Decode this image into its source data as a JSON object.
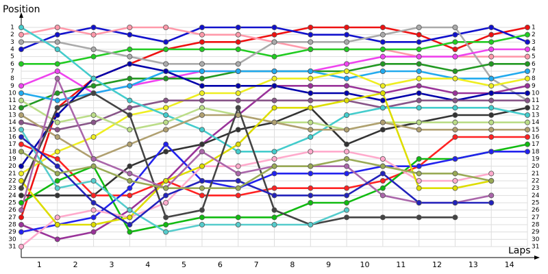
{
  "chart_data": {
    "type": "line",
    "y_label": "Position",
    "x_label": "Laps",
    "x": [
      0,
      1,
      2,
      3,
      4,
      5,
      6,
      7,
      8,
      9,
      10,
      11,
      12,
      13,
      14
    ],
    "xlim": [
      0,
      14
    ],
    "xticks": [
      {
        "value": 0.5,
        "label": "1"
      },
      {
        "value": 1.5,
        "label": "2"
      },
      {
        "value": 2.5,
        "label": "3"
      },
      {
        "value": 3.5,
        "label": "4"
      },
      {
        "value": 4.5,
        "label": "5"
      },
      {
        "value": 5.5,
        "label": "6"
      },
      {
        "value": 6.5,
        "label": "7"
      },
      {
        "value": 7.5,
        "label": "8"
      },
      {
        "value": 8.5,
        "label": "9"
      },
      {
        "value": 9.5,
        "label": "10"
      },
      {
        "value": 10.5,
        "label": "11"
      },
      {
        "value": 11.5,
        "label": "12"
      },
      {
        "value": 12.5,
        "label": "13"
      },
      {
        "value": 13.5,
        "label": "14"
      }
    ],
    "ylim": [
      1,
      31
    ],
    "y_inverted": true,
    "yticks": [
      1,
      2,
      3,
      4,
      5,
      6,
      7,
      8,
      9,
      10,
      11,
      12,
      13,
      14,
      15,
      16,
      17,
      18,
      19,
      20,
      21,
      22,
      23,
      24,
      25,
      26,
      27,
      28,
      29,
      30,
      31
    ],
    "right_ticks": true,
    "grid": true,
    "series": [
      {
        "color": "#ee1111",
        "values": [
          27,
          12,
          8,
          6,
          4,
          3,
          3,
          2,
          1,
          1,
          1,
          2,
          4,
          2,
          1
        ]
      },
      {
        "color": "#1111cc",
        "values": [
          4,
          2,
          1,
          2,
          3,
          1,
          1,
          1,
          2,
          2,
          3,
          3,
          2,
          1,
          3
        ]
      },
      {
        "color": "#ff99aa",
        "values": [
          2,
          1,
          2,
          1,
          1,
          2,
          2,
          3,
          4,
          4,
          4,
          5,
          5,
          5,
          5
        ]
      },
      {
        "color": "#22cc22",
        "values": [
          6,
          6,
          5,
          4,
          4,
          4,
          4,
          5,
          4,
          4,
          4,
          4,
          3,
          3,
          2
        ]
      },
      {
        "color": "#aaaaaa",
        "values": [
          3,
          3,
          4,
          5,
          6,
          6,
          6,
          3,
          3,
          3,
          2,
          1,
          1,
          8,
          11
        ]
      },
      {
        "color": "#ee44ee",
        "values": [
          9,
          7,
          10,
          9,
          8,
          7,
          7,
          7,
          7,
          6,
          5,
          5,
          5,
          4,
          4
        ]
      },
      {
        "color": "#229922",
        "values": [
          12,
          10,
          9,
          8,
          8,
          8,
          7,
          7,
          7,
          7,
          6,
          6,
          7,
          6,
          6
        ]
      },
      {
        "color": "#22aaee",
        "values": [
          10,
          11,
          10,
          9,
          7,
          7,
          7,
          7,
          7,
          8,
          7,
          7,
          8,
          8,
          7
        ]
      },
      {
        "color": "#eeee22",
        "values": [
          21,
          18,
          16,
          13,
          12,
          10,
          10,
          8,
          8,
          7,
          9,
          8,
          8,
          9,
          8
        ]
      },
      {
        "color": "#993399",
        "values": [
          28,
          30,
          29,
          26,
          22,
          17,
          13,
          9,
          9,
          9,
          10,
          9,
          10,
          10,
          9
        ]
      },
      {
        "color": "#0000aa",
        "values": [
          20,
          13,
          8,
          6,
          7,
          9,
          9,
          9,
          10,
          10,
          11,
          10,
          11,
          10,
          10
        ]
      },
      {
        "color": "#885588",
        "values": [
          14,
          15,
          14,
          12,
          11,
          11,
          11,
          11,
          11,
          11,
          12,
          11,
          11,
          11,
          11
        ]
      },
      {
        "color": "#333333",
        "values": [
          24,
          24,
          24,
          20,
          18,
          17,
          15,
          14,
          12,
          17,
          15,
          14,
          13,
          13,
          12
        ]
      },
      {
        "color": "#44cccc",
        "values": [
          1,
          4,
          8,
          11,
          13,
          15,
          18,
          18,
          16,
          13,
          12,
          12,
          12,
          12,
          13
        ]
      },
      {
        "color": "#bbdd88",
        "values": [
          11,
          14,
          13,
          15,
          14,
          12,
          13,
          14,
          14,
          15,
          14,
          14,
          14,
          14,
          14
        ]
      },
      {
        "color": "#b0a070",
        "values": [
          13,
          16,
          19,
          17,
          15,
          13,
          13,
          14,
          15,
          15,
          14,
          15,
          15,
          15,
          15
        ]
      },
      {
        "color": "#ff2222",
        "values": [
          17,
          19,
          24,
          24,
          22,
          24,
          24,
          23,
          23,
          23,
          22,
          20,
          16,
          16,
          16
        ]
      },
      {
        "color": "#11bb11",
        "values": [
          25,
          22,
          20,
          29,
          28,
          27,
          27,
          27,
          25,
          25,
          23,
          19,
          19,
          18,
          17
        ]
      },
      {
        "color": "#2222ee",
        "values": [
          29,
          28,
          27,
          23,
          17,
          22,
          23,
          21,
          21,
          21,
          20,
          20,
          19,
          18,
          18
        ]
      },
      {
        "color": "#ffaacc",
        "values": [
          31,
          27,
          26,
          27,
          25,
          20,
          20,
          19,
          18,
          18,
          19,
          22,
          22,
          21,
          null
        ]
      },
      {
        "color": "#dddd00",
        "values": [
          22,
          28,
          28,
          27,
          22,
          20,
          17,
          12,
          12,
          11,
          10,
          23,
          23,
          22,
          null
        ]
      },
      {
        "color": "#444444",
        "values": [
          23,
          12,
          10,
          13,
          27,
          26,
          12,
          26,
          28,
          27,
          27,
          27,
          27,
          null,
          null
        ]
      },
      {
        "color": "#55cccc",
        "values": [
          15,
          23,
          22,
          26,
          29,
          28,
          28,
          28,
          28,
          26,
          null,
          null,
          null,
          null,
          null
        ]
      },
      {
        "color": "#aa66aa",
        "values": [
          26,
          8,
          19,
          21,
          23,
          18,
          21,
          20,
          20,
          20,
          24,
          25,
          25,
          24,
          null
        ]
      },
      {
        "color": "#2222bb",
        "values": [
          16,
          20,
          25,
          28,
          24,
          22,
          22,
          24,
          24,
          24,
          21,
          25,
          25,
          25,
          null
        ]
      },
      {
        "color": "#99aa55",
        "values": [
          18,
          21,
          20,
          22,
          23,
          23,
          23,
          20,
          20,
          19,
          20,
          21,
          21,
          22,
          null
        ]
      }
    ]
  }
}
